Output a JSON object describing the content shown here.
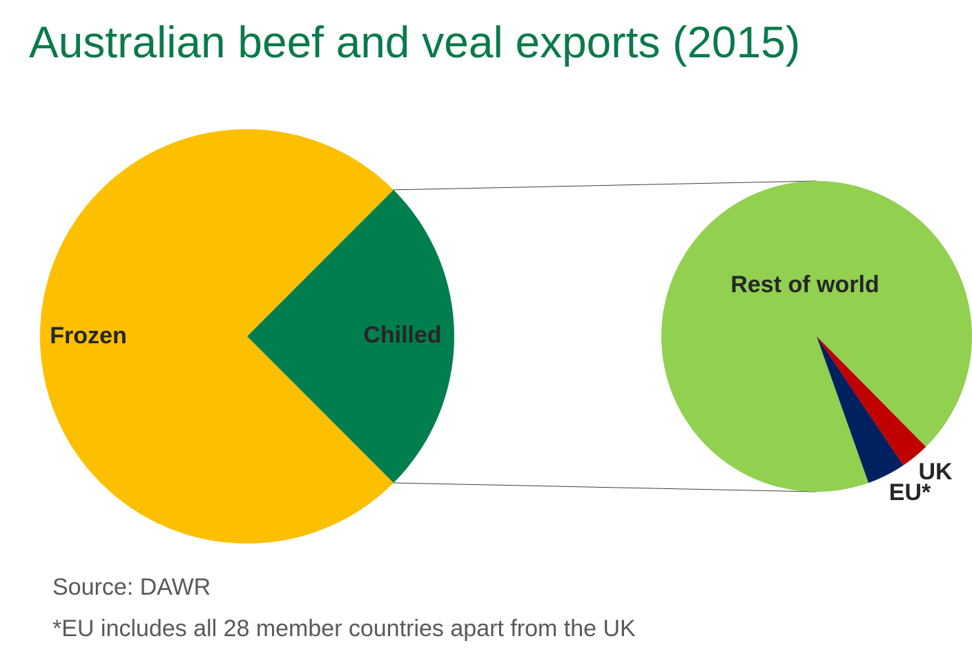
{
  "chart_data": {
    "type": "pie",
    "title": "Australian beef and veal exports (2015)",
    "categories": [
      "Frozen",
      "Chilled"
    ],
    "values": [
      75,
      25
    ],
    "colors": [
      "#fcc000",
      "#007e4e"
    ],
    "breakout": {
      "categories": [
        "Rest of world",
        "UK",
        "EU*"
      ],
      "values": [
        93,
        3,
        4
      ],
      "colors": [
        "#92d050",
        "#c00000",
        "#002060"
      ]
    },
    "source": "Source: DAWR",
    "note": "*EU includes all 28 member countries apart from the UK"
  }
}
